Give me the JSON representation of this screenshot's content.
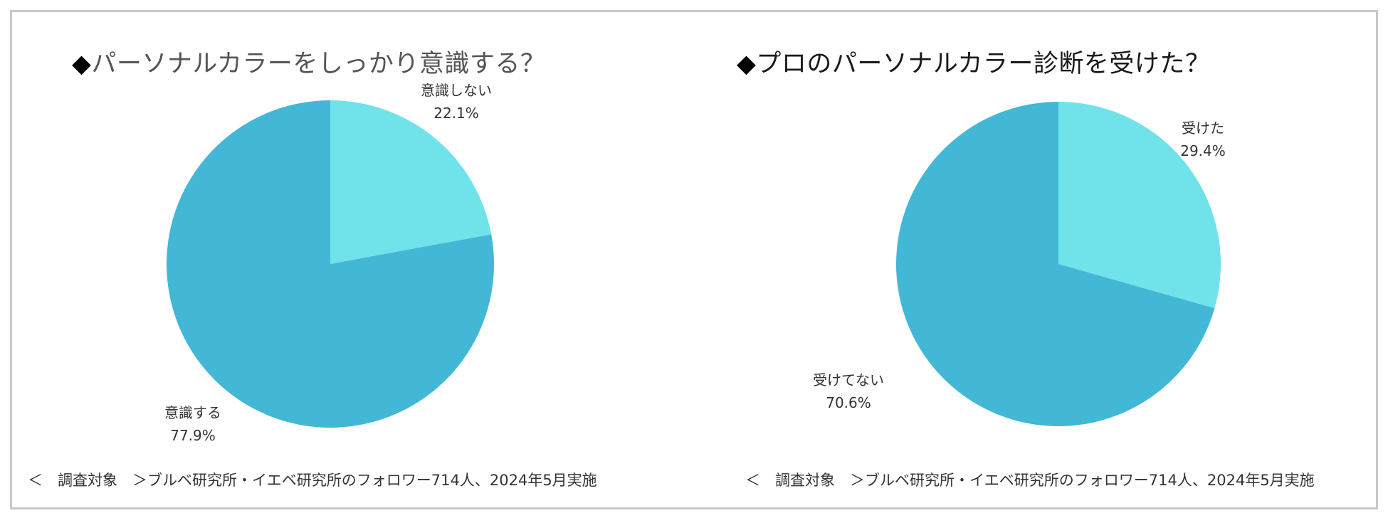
{
  "chart_data": [
    {
      "type": "pie",
      "title": "パーソナルカラーをしっかり意識する？",
      "title_prefix": "◆",
      "categories": [
        "意識しない",
        "意識する"
      ],
      "values": [
        22.1,
        77.9
      ],
      "value_labels": [
        "22.1%",
        "77.9%"
      ],
      "colors": [
        "#6fe3e9",
        "#42b7d6"
      ],
      "start_angle_deg": 0,
      "direction": "clockwise",
      "footnote": "＜　調査対象　＞ブルベ研究所・イエベ研究所のフォロワー714人、2024年5月実施"
    },
    {
      "type": "pie",
      "title": "プロのパーソナルカラー診断を受けた？",
      "title_prefix": "◆",
      "categories": [
        "受けた",
        "受けてない"
      ],
      "values": [
        29.4,
        70.6
      ],
      "value_labels": [
        "29.4%",
        "70.6%"
      ],
      "colors": [
        "#6fe3e9",
        "#42b7d6"
      ],
      "start_angle_deg": 0,
      "direction": "clockwise",
      "footnote": "＜　調査対象　＞ブルベ研究所・イエベ研究所のフォロワー714人、2024年5月実施"
    }
  ]
}
